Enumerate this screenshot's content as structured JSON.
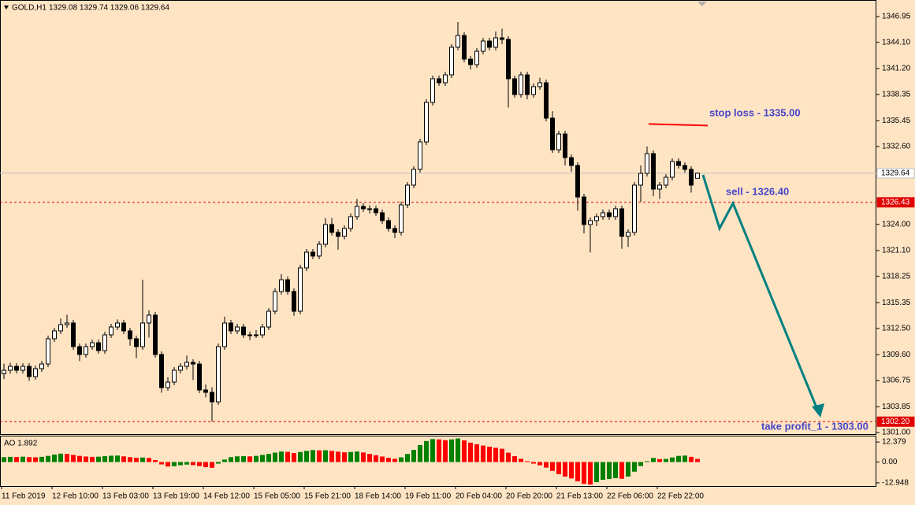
{
  "chart_data": [
    {
      "type": "candlestick",
      "title": "GOLD,H1",
      "subtitle": "1329.08 1329.74 1329.06 1329.64",
      "up_color": "#ffffff",
      "down_color": "#000000",
      "edge_color": "#000000",
      "ylim": [
        1300.74,
        1348.78
      ],
      "yticks": [
        1346.95,
        {
          "value": 1344.1,
          "label": "1344.10"
        },
        {
          "value": 1341.2,
          "label": "1341.20"
        },
        1338.35,
        1335.45,
        {
          "value": 1332.6,
          "label": "1332.60"
        },
        {
          "value": 1324.0,
          "label": "1324.00"
        },
        {
          "value": 1321.1,
          "label": "1321.10"
        },
        1318.25,
        1315.35,
        {
          "value": 1312.5,
          "label": "1312.50"
        },
        {
          "value": 1309.6,
          "label": "1309.60"
        },
        1306.75,
        1303.85,
        {
          "value": 1301.0,
          "label": "1301.00"
        }
      ],
      "categories": [
        "11 Feb 2019",
        null,
        null,
        null,
        null,
        null,
        null,
        null,
        "12 Feb 10:00",
        null,
        null,
        null,
        null,
        null,
        null,
        null,
        "13 Feb 03:00",
        null,
        null,
        null,
        null,
        null,
        null,
        null,
        "13 Feb 19:00",
        null,
        null,
        null,
        null,
        null,
        null,
        null,
        "14 Feb 12:00",
        null,
        null,
        null,
        null,
        null,
        null,
        null,
        "15 Feb 05:00",
        null,
        null,
        null,
        null,
        null,
        null,
        null,
        "15 Feb 21:00",
        null,
        null,
        null,
        null,
        null,
        null,
        null,
        "18 Feb 14:00",
        null,
        null,
        null,
        null,
        null,
        null,
        null,
        "19 Feb 11:00",
        null,
        null,
        null,
        null,
        null,
        null,
        null,
        "20 Feb 04:00",
        null,
        null,
        null,
        null,
        null,
        null,
        null,
        "20 Feb 20:00",
        null,
        null,
        null,
        null,
        null,
        null,
        null,
        "21 Feb 13:00",
        null,
        null,
        null,
        null,
        null,
        null,
        null,
        "22 Feb 06:00",
        null,
        null,
        null,
        null,
        null,
        null,
        null,
        "22 Feb 22:00",
        null,
        null,
        null,
        null,
        null,
        null
      ],
      "open": [
        1307.5,
        1307.88,
        1308.31,
        1307.88,
        1308.31,
        1307.18,
        1308.05,
        1308.57,
        1311.36,
        1312.23,
        1312.92,
        1313.1,
        1310.49,
        1309.62,
        1310.49,
        1310.92,
        1310.05,
        1311.79,
        1312.66,
        1313.1,
        1312.23,
        1311.36,
        1310.49,
        1313.1,
        1313.97,
        1309.62,
        1305.96,
        1306.57,
        1307.88,
        1308.31,
        1308.75,
        1308.57,
        1305.7,
        1305.44,
        1304.39,
        1310.49,
        1313.1,
        1312.23,
        1312.66,
        1311.79,
        1311.79,
        1311.79,
        1312.66,
        1314.4,
        1316.58,
        1317.88,
        1316.58,
        1314.4,
        1319.19,
        1320.93,
        1320.5,
        1321.8,
        1323.98,
        1323.11,
        1322.67,
        1323.54,
        1324.85,
        1325.98,
        1325.72,
        1325.72,
        1325.28,
        1324.41,
        1323.54,
        1323.11,
        1326.15,
        1328.33,
        1330.07,
        1333.11,
        1337.47,
        1340.08,
        1339.64,
        1340.51,
        1343.56,
        1344.86,
        1342.25,
        1341.64,
        1343.12,
        1344.25,
        1343.56,
        1344.6,
        1344.43,
        1340.08,
        1338.34,
        1340.51,
        1338.34,
        1339.21,
        1339.64,
        1335.73,
        1332.24,
        1333.98,
        1331.37,
        1330.5,
        1327.02,
        1323.98,
        1324.41,
        1324.85,
        1325.28,
        1324.85,
        1325.72,
        1322.67,
        1323.11,
        1328.33,
        1329.63,
        1331.81,
        1327.89,
        1328.33,
        1329.2,
        1330.94,
        1330.5,
        1330.07,
        1329.08
      ],
      "high": [
        1308.6,
        1308.7,
        1308.66,
        1308.66,
        1308.66,
        1308.4,
        1308.92,
        1311.71,
        1312.58,
        1313.6,
        1314.0,
        1313.45,
        1310.84,
        1310.84,
        1311.27,
        1311.27,
        1312.14,
        1313.01,
        1313.5,
        1313.45,
        1312.58,
        1311.71,
        1317.88,
        1314.5,
        1314.32,
        1309.97,
        1307.1,
        1308.23,
        1308.66,
        1309.5,
        1309.1,
        1308.92,
        1306.3,
        1306.0,
        1310.84,
        1313.8,
        1313.45,
        1313.01,
        1313.01,
        1312.14,
        1312.3,
        1313.01,
        1314.75,
        1316.93,
        1318.5,
        1318.23,
        1316.93,
        1319.54,
        1321.28,
        1321.28,
        1322.15,
        1324.7,
        1324.7,
        1323.46,
        1323.89,
        1325.2,
        1326.8,
        1326.33,
        1326.1,
        1326.07,
        1325.63,
        1324.76,
        1323.89,
        1326.5,
        1328.68,
        1330.42,
        1333.46,
        1337.82,
        1340.43,
        1340.43,
        1340.86,
        1343.91,
        1346.34,
        1345.21,
        1342.6,
        1343.47,
        1344.6,
        1344.6,
        1345.3,
        1345.6,
        1344.78,
        1340.43,
        1340.86,
        1340.86,
        1339.56,
        1340.2,
        1339.99,
        1336.5,
        1334.33,
        1334.33,
        1331.72,
        1330.85,
        1327.37,
        1324.76,
        1325.2,
        1325.63,
        1325.63,
        1326.07,
        1326.07,
        1323.46,
        1328.68,
        1330.5,
        1332.6,
        1332.16,
        1328.68,
        1329.55,
        1331.29,
        1331.3,
        1330.85,
        1330.42,
        1329.74
      ],
      "low": [
        1306.9,
        1307.5,
        1307.53,
        1307.53,
        1306.7,
        1306.83,
        1307.7,
        1308.22,
        1311.01,
        1311.88,
        1312.57,
        1310.14,
        1308.9,
        1309.27,
        1310.14,
        1309.7,
        1309.7,
        1311.44,
        1312.31,
        1311.88,
        1310.6,
        1309.2,
        1310.14,
        1311.5,
        1309.27,
        1305.4,
        1305.61,
        1306.22,
        1307.53,
        1307.96,
        1306.8,
        1305.35,
        1304.9,
        1302.2,
        1304.04,
        1310.14,
        1311.88,
        1311.88,
        1311.44,
        1311.2,
        1311.44,
        1311.44,
        1312.31,
        1314.05,
        1316.23,
        1316.23,
        1313.9,
        1314.05,
        1318.84,
        1320.15,
        1320.15,
        1321.45,
        1322.76,
        1321.2,
        1322.32,
        1323.19,
        1324.5,
        1325.37,
        1325.2,
        1324.93,
        1324.06,
        1323.19,
        1322.5,
        1322.76,
        1325.8,
        1327.98,
        1329.72,
        1332.76,
        1337.12,
        1339.29,
        1339.29,
        1340.16,
        1343.21,
        1341.9,
        1341.1,
        1341.29,
        1342.77,
        1343.21,
        1343.21,
        1343.9,
        1336.9,
        1337.99,
        1337.99,
        1337.8,
        1337.99,
        1338.86,
        1335.38,
        1331.89,
        1331.89,
        1330.5,
        1329.8,
        1325.5,
        1323.0,
        1320.9,
        1323.8,
        1324.5,
        1324.5,
        1324.5,
        1321.3,
        1321.5,
        1322.76,
        1326.5,
        1329.28,
        1327.1,
        1326.8,
        1327.98,
        1328.85,
        1330.15,
        1329.72,
        1327.5,
        1329.06
      ],
      "close": [
        1307.88,
        1308.31,
        1307.88,
        1308.31,
        1307.18,
        1308.05,
        1308.57,
        1311.36,
        1312.23,
        1312.92,
        1313.1,
        1310.49,
        1309.62,
        1310.49,
        1310.92,
        1310.05,
        1311.79,
        1312.66,
        1313.1,
        1312.23,
        1311.36,
        1310.49,
        1313.1,
        1313.97,
        1309.62,
        1305.96,
        1306.57,
        1307.88,
        1308.31,
        1308.75,
        1308.57,
        1305.7,
        1305.44,
        1304.39,
        1310.49,
        1313.1,
        1312.23,
        1312.66,
        1311.79,
        1311.79,
        1311.79,
        1312.66,
        1314.4,
        1316.58,
        1317.88,
        1316.58,
        1314.4,
        1319.19,
        1320.93,
        1320.5,
        1321.8,
        1323.98,
        1323.11,
        1322.67,
        1323.54,
        1324.85,
        1325.98,
        1325.72,
        1325.72,
        1325.28,
        1324.41,
        1323.54,
        1323.11,
        1326.15,
        1328.33,
        1330.07,
        1333.11,
        1337.47,
        1340.08,
        1339.64,
        1340.51,
        1343.56,
        1344.86,
        1342.25,
        1341.64,
        1343.12,
        1344.25,
        1343.56,
        1344.6,
        1344.43,
        1340.08,
        1338.34,
        1340.51,
        1338.34,
        1339.21,
        1339.64,
        1335.73,
        1332.24,
        1333.98,
        1331.37,
        1330.5,
        1327.02,
        1323.98,
        1324.41,
        1324.85,
        1325.28,
        1324.85,
        1325.72,
        1322.67,
        1323.11,
        1328.33,
        1329.63,
        1331.81,
        1327.89,
        1328.33,
        1329.2,
        1330.94,
        1330.5,
        1330.07,
        1328.33,
        1329.64
      ],
      "levels": [
        {
          "value": 1329.64,
          "color": "#c0c0c0",
          "dashed": false,
          "box_color": "#ffffff",
          "text_color": "#000000"
        },
        {
          "value": 1326.43,
          "color": "#e00000",
          "dashed": true,
          "box_color": "#e00000",
          "text_color": "#ffffff"
        },
        {
          "value": 1302.2,
          "label": "1302.20",
          "color": "#e00000",
          "dashed": true,
          "box_color": "#e00000",
          "text_color": "#ffffff"
        }
      ],
      "stop_loss": {
        "value": 1335,
        "color": "#ff0000"
      },
      "annotation_color": "#4646c8",
      "annotations": [
        "stop loss - 1335.00",
        "sell - 1326.40",
        "take profit_1 - 1303.00"
      ],
      "path_color": "#008080"
    },
    {
      "type": "bar",
      "title": "AO 1.892",
      "up_color": "#008000",
      "down_color": "#ff0000",
      "ylim": [
        -14.93,
        15.84
      ],
      "yticks": [
        12.379,
        {
          "value": 0,
          "label": "0.00"
        },
        -12.948
      ],
      "values": [
        3.0,
        3.2,
        3.1,
        3.3,
        3.0,
        2.9,
        3.2,
        3.8,
        4.6,
        5.2,
        5.0,
        4.4,
        3.8,
        3.4,
        3.2,
        3.3,
        3.6,
        3.9,
        4.0,
        3.5,
        3.0,
        2.6,
        2.8,
        2.5,
        1.2,
        -1.5,
        -2.8,
        -2.6,
        -2.0,
        -1.6,
        -1.9,
        -2.5,
        -3.2,
        -3.6,
        -1.0,
        1.5,
        3.0,
        3.5,
        3.6,
        3.5,
        3.8,
        4.4,
        5.0,
        5.8,
        6.5,
        6.3,
        5.6,
        6.2,
        6.9,
        7.4,
        7.2,
        7.3,
        6.9,
        6.4,
        6.0,
        6.2,
        6.5,
        5.9,
        5.0,
        4.2,
        3.4,
        2.6,
        2.0,
        2.9,
        5.0,
        7.5,
        10.5,
        13.0,
        14.2,
        14.0,
        13.5,
        14.0,
        14.6,
        13.4,
        12.0,
        11.0,
        10.2,
        9.5,
        8.8,
        8.2,
        5.8,
        3.6,
        2.0,
        0.5,
        -1.0,
        -2.0,
        -3.5,
        -5.5,
        -7.5,
        -9.0,
        -10.2,
        -12.0,
        -13.5,
        -14.0,
        -12.5,
        -11.0,
        -10.5,
        -10.0,
        -10.4,
        -9.0,
        -6.0,
        -2.5,
        0.5,
        2.5,
        1.8,
        1.9,
        2.8,
        3.8,
        4.0,
        3.2,
        1.892
      ]
    }
  ]
}
